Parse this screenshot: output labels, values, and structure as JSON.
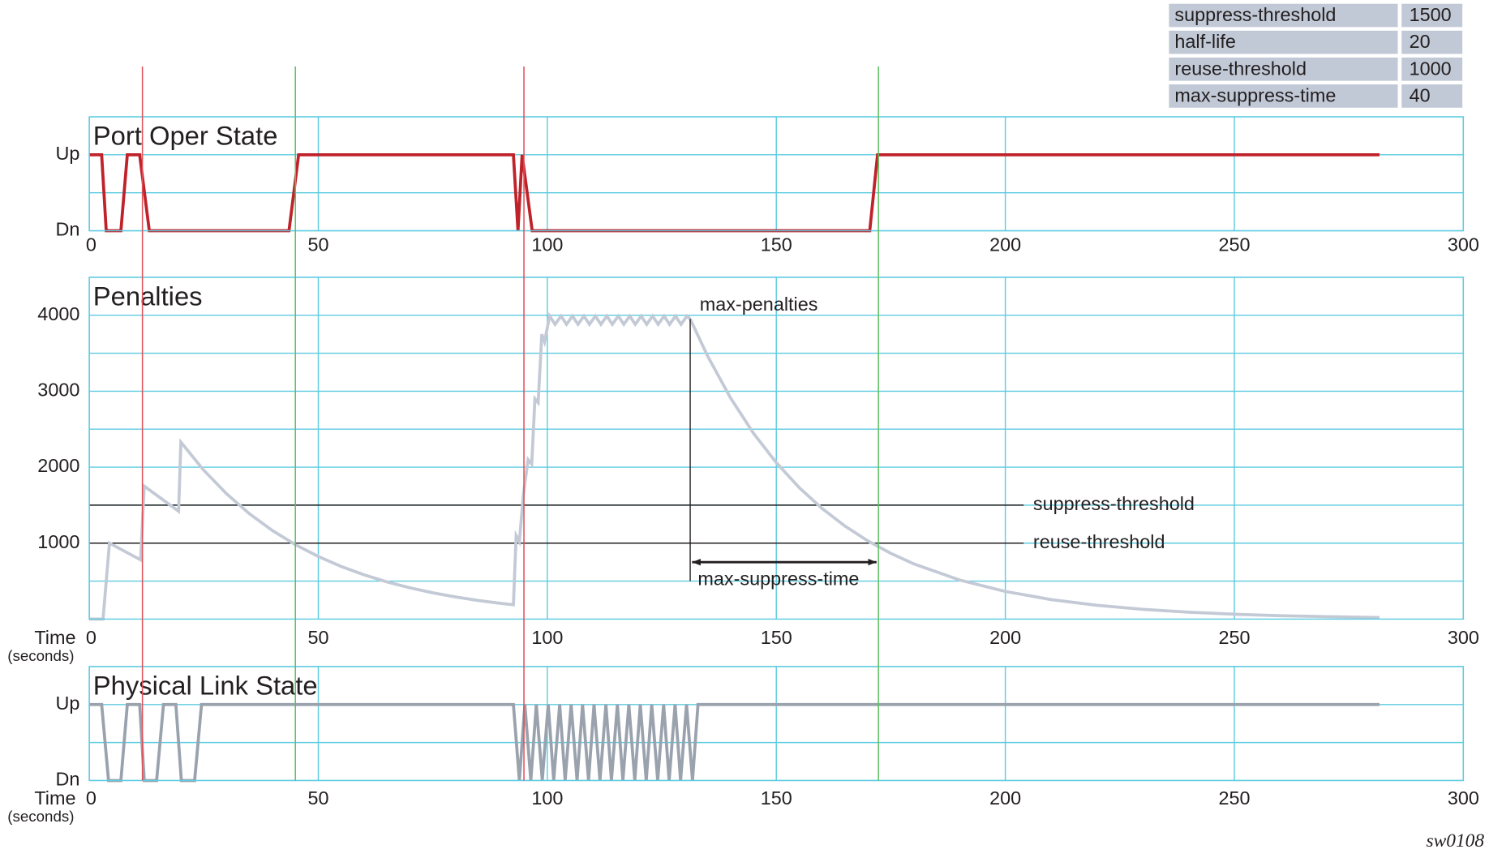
{
  "table": {
    "rows": [
      [
        "suppress-threshold",
        "1500"
      ],
      [
        "half-life",
        "20"
      ],
      [
        "reuse-threshold",
        "1000"
      ],
      [
        "max-suppress-time",
        "40"
      ]
    ],
    "fill": "#c2c9d6"
  },
  "event_lines": [
    {
      "x": 11.6,
      "color": "#e0505a"
    },
    {
      "x": 45.0,
      "color": "#5cc05c"
    },
    {
      "x": 94.9,
      "color": "#e0505a"
    },
    {
      "x": 172.3,
      "color": "#5cc05c"
    }
  ],
  "footer": "sw0108",
  "chart_data": [
    {
      "type": "line",
      "title": "Port Oper State",
      "xlim": [
        0,
        300
      ],
      "xticks": [
        0,
        50,
        100,
        150,
        200,
        250,
        300
      ],
      "ylim": [
        0,
        1.5
      ],
      "yticks": [
        {
          "value": 0,
          "label": "Dn"
        },
        {
          "value": 1,
          "label": "Up"
        }
      ],
      "yminor": [
        0.5,
        1.5
      ],
      "grid": true,
      "grid_color": "#5ccbe0",
      "color": "#c0222a",
      "x": [
        0,
        2.7,
        3.7,
        6.9,
        8.3,
        11,
        13.1,
        43.6,
        45.7,
        92.6,
        93.6,
        94.5,
        96.7,
        170.4,
        172.1,
        281.7
      ],
      "values": [
        1,
        1,
        0,
        0,
        1,
        1,
        0,
        0,
        1,
        1,
        0,
        1,
        0,
        0,
        1,
        1
      ]
    },
    {
      "type": "line",
      "title": "Penalties",
      "xlabel": "Time",
      "xlabel_unit": "(seconds)",
      "xlim": [
        0,
        300
      ],
      "xticks": [
        0,
        50,
        100,
        150,
        200,
        250,
        300
      ],
      "ylim": [
        0,
        4500
      ],
      "yticks": [
        1000,
        2000,
        3000,
        4000
      ],
      "yminor": [
        500,
        1500,
        2500,
        3500,
        4500
      ],
      "grid": true,
      "grid_color": "#5ccbe0",
      "color": "#c3cad6",
      "x": [
        0,
        3,
        4.4,
        11.2,
        12,
        19.5,
        20,
        25,
        30,
        35,
        40,
        45,
        50,
        55,
        60,
        65,
        70,
        75,
        80,
        85,
        90,
        92.6,
        93.2,
        93.9,
        94.8,
        95.8,
        96.6,
        97.3,
        98.0,
        98.8,
        99.4,
        100.5,
        101.7,
        103.0,
        104.2,
        105.5,
        106.7,
        108.0,
        109.2,
        110.5,
        111.7,
        113.0,
        114.2,
        115.5,
        116.7,
        118.0,
        119.2,
        120.5,
        121.7,
        123.0,
        124.2,
        125.5,
        126.7,
        128.0,
        129.2,
        130.5,
        131.2,
        135,
        140,
        145,
        150,
        155,
        160,
        165,
        170,
        175,
        180,
        190,
        200,
        210,
        220,
        230,
        240,
        250,
        260,
        270,
        281.7
      ],
      "values": [
        0,
        0,
        1000,
        780,
        1750,
        1420,
        2330,
        1959,
        1648,
        1385,
        1165,
        980,
        824,
        693,
        583,
        490,
        412,
        346,
        291,
        245,
        206,
        189,
        1100,
        1020,
        1650,
        2100,
        2040,
        2900,
        2850,
        3750,
        3650,
        3990,
        3880,
        3990,
        3880,
        3990,
        3880,
        3990,
        3880,
        3990,
        3880,
        3990,
        3880,
        3990,
        3880,
        3990,
        3880,
        3990,
        3880,
        3990,
        3880,
        3990,
        3880,
        3990,
        3880,
        3990,
        3950,
        3463,
        2912,
        2448,
        2059,
        1731,
        1456,
        1224,
        1029,
        866,
        728,
        515,
        364,
        257,
        182,
        129,
        91,
        64,
        45,
        32,
        21
      ],
      "hlines": [
        {
          "label": "suppress-threshold",
          "value": 1500,
          "x_end": 204
        },
        {
          "label": "reuse-threshold",
          "value": 1000,
          "x_end": 204
        }
      ],
      "annotations": [
        {
          "text": "max-penalties",
          "x": 131.2,
          "y": 3950
        }
      ],
      "span": {
        "text": "max-suppress-time",
        "x": [
          131.2,
          172.3
        ],
        "y": 750,
        "line_to": 500
      }
    },
    {
      "type": "line",
      "title": "Physical Link State",
      "xlabel": "Time",
      "xlabel_unit": "(seconds)",
      "xlim": [
        0,
        300
      ],
      "xticks": [
        0,
        50,
        100,
        150,
        200,
        250,
        300
      ],
      "ylim": [
        0,
        1.5
      ],
      "yticks": [
        {
          "value": 0,
          "label": "Dn"
        },
        {
          "value": 1,
          "label": "Up"
        }
      ],
      "yminor": [
        0.5,
        1.5
      ],
      "grid": true,
      "grid_color": "#5ccbe0",
      "color": "#9aa2ae",
      "x": [
        0,
        2.7,
        4.2,
        6.9,
        8.3,
        11,
        12,
        14.7,
        16.2,
        18.9,
        20.1,
        23,
        24.5,
        92.6,
        93.9,
        95.1,
        96.4,
        97.6,
        98.9,
        100.2,
        101.4,
        102.7,
        103.9,
        105.2,
        106.5,
        107.7,
        109.0,
        110.2,
        111.5,
        112.8,
        114.0,
        115.3,
        116.5,
        117.8,
        119.1,
        120.3,
        121.6,
        122.8,
        124.1,
        125.4,
        126.6,
        127.9,
        129.1,
        130.4,
        131.7,
        132.9,
        281.7
      ],
      "values": [
        1,
        1,
        0,
        0,
        1,
        1,
        0,
        0,
        1,
        1,
        0,
        0,
        1,
        1,
        0,
        1,
        0,
        1,
        0,
        1,
        0,
        1,
        0,
        1,
        0,
        1,
        0,
        1,
        0,
        1,
        0,
        1,
        0,
        1,
        0,
        1,
        0,
        1,
        0,
        1,
        0,
        1,
        0,
        1,
        0,
        1,
        1
      ]
    }
  ]
}
